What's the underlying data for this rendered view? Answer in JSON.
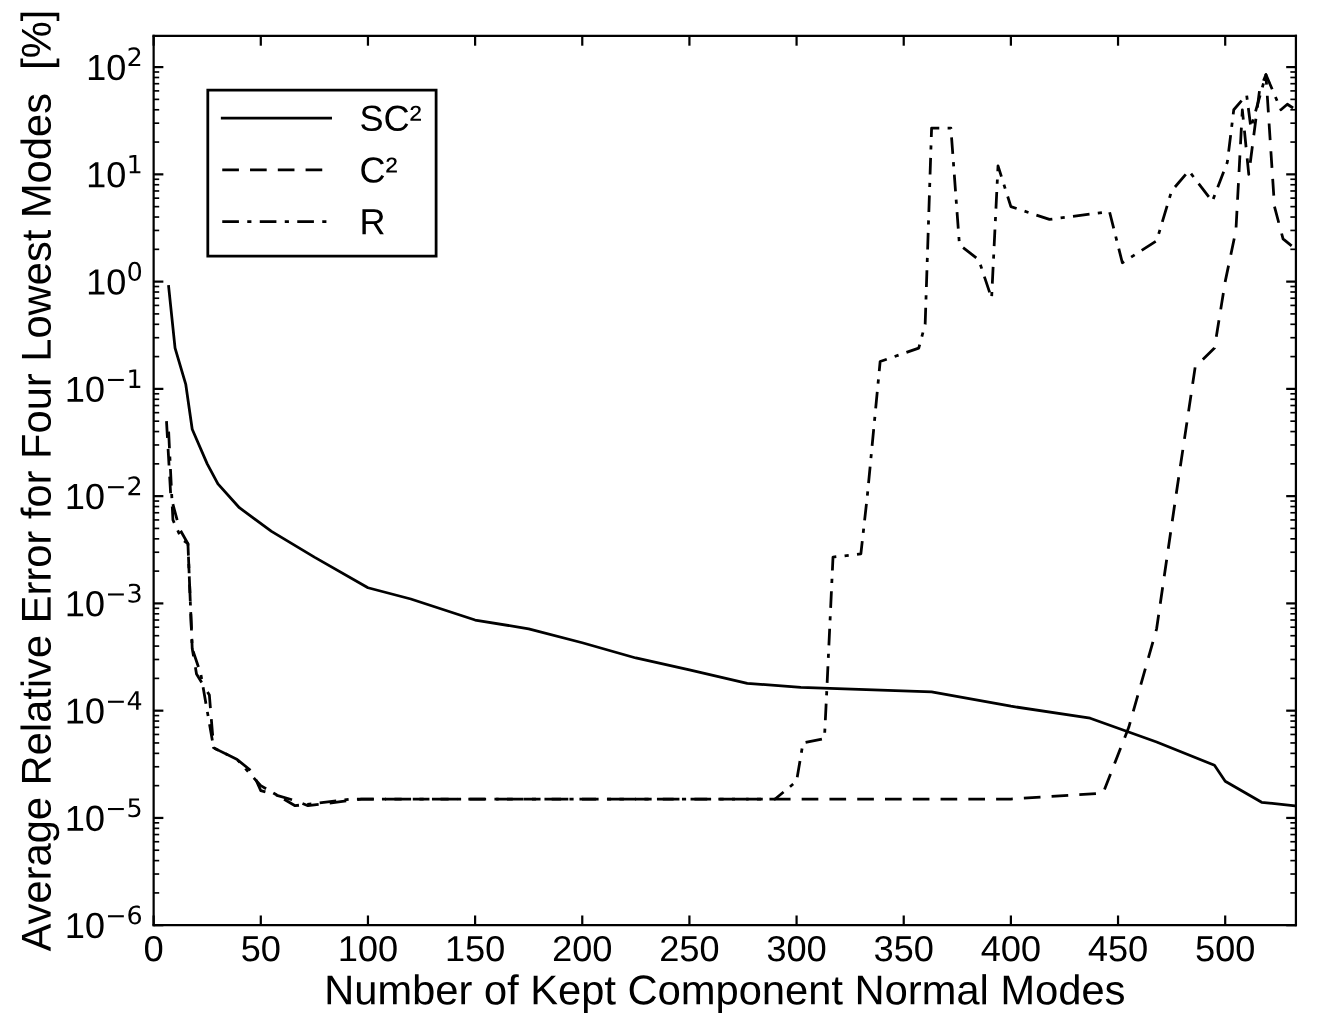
{
  "chart_data": {
    "type": "line",
    "xlabel": "Number of Kept Component Normal Modes",
    "ylabel": "Average Relative Error for Four Lowest Modes  [%]",
    "log": "y",
    "xlim": [
      0,
      533
    ],
    "ylim": [
      1e-06,
      195
    ],
    "xticks": [
      0,
      50,
      100,
      150,
      200,
      250,
      300,
      350,
      400,
      450,
      500
    ],
    "yticks": [
      {
        "value": 1e-06,
        "label": "10$^{−6}$"
      },
      {
        "value": 1e-05,
        "label": "10$^{−5}$"
      },
      {
        "value": 0.0001,
        "label": "10$^{−4}$"
      },
      {
        "value": 0.001,
        "label": "10$^{−3}$"
      },
      {
        "value": 0.01,
        "label": "10$^{−2}$"
      },
      {
        "value": 0.1,
        "label": "10$^{−1}$"
      },
      {
        "value": 1,
        "label": "10$^{0}$"
      },
      {
        "value": 10,
        "label": "10$^{1}$"
      },
      {
        "value": 100,
        "label": "10$^{2}$"
      }
    ],
    "grid": false,
    "legend": "top left",
    "marker": "none",
    "series": [
      {
        "name": "SC²",
        "color": "#000000",
        "line_style": "solid",
        "x": [
          7,
          10,
          15,
          18,
          25,
          30,
          40,
          55,
          75,
          100,
          120,
          150,
          175,
          200,
          225,
          250,
          277,
          302,
          363,
          400,
          437,
          468,
          495,
          500,
          517,
          532
        ],
        "values": [
          0.9,
          0.24,
          0.11,
          0.042,
          0.02,
          0.013,
          0.0078,
          0.0047,
          0.0027,
          0.0014,
          0.0011,
          0.0007,
          0.00058,
          0.00043,
          0.00031,
          0.00024,
          0.00018,
          0.000165,
          0.00015,
          0.00011,
          8.5e-05,
          5.1e-05,
          3.1e-05,
          2.2e-05,
          1.4e-05,
          1.3e-05
        ]
      },
      {
        "name": "C²",
        "color": "#000000",
        "line_style": "dashed",
        "x": [
          6,
          8,
          12,
          16,
          18,
          20,
          26,
          28,
          39,
          46,
          50,
          66,
          72,
          97,
          200,
          300,
          400,
          443,
          455,
          468,
          477,
          486,
          495,
          500,
          505,
          508,
          511,
          516,
          519,
          523,
          527,
          533
        ],
        "values": [
          0.05,
          0.01,
          0.005,
          0.0036,
          0.00038,
          0.00022,
          0.00014,
          4.5e-05,
          3.5e-05,
          2.7e-05,
          1.8e-05,
          1.45e-05,
          1.3e-05,
          1.5e-05,
          1.5e-05,
          1.5e-05,
          1.5e-05,
          1.7e-05,
          7e-05,
          0.00058,
          0.01,
          0.16,
          0.24,
          1,
          3,
          40,
          10,
          60,
          85,
          5,
          2.5,
          2
        ]
      },
      {
        "name": "R",
        "color": "#000000",
        "line_style": "dashdot",
        "x": [
          7,
          9,
          13,
          16,
          18,
          22,
          28,
          39,
          50,
          66,
          92,
          200,
          290,
          300,
          303,
          313,
          314,
          317,
          330,
          333,
          339,
          357,
          360,
          363,
          372,
          376,
          385,
          391,
          394,
          400,
          418,
          446,
          452,
          468,
          475,
          483,
          494,
          501,
          504,
          510,
          512,
          519,
          526,
          529,
          533
        ],
        "values": [
          0.04,
          0.006,
          0.004,
          0.0036,
          0.00038,
          0.00022,
          4.5e-05,
          3.5e-05,
          2e-05,
          1.3e-05,
          1.5e-05,
          1.5e-05,
          1.5e-05,
          2.2e-05,
          5e-05,
          5.5e-05,
          0.00014,
          0.0027,
          0.0029,
          0.01,
          0.18,
          0.24,
          0.4,
          27,
          27,
          2.2,
          1.6,
          0.7,
          12,
          5,
          3.8,
          4.5,
          1.5,
          2.4,
          7,
          10.8,
          5.6,
          13,
          40,
          55,
          27,
          85,
          40,
          45,
          40
        ]
      }
    ]
  }
}
